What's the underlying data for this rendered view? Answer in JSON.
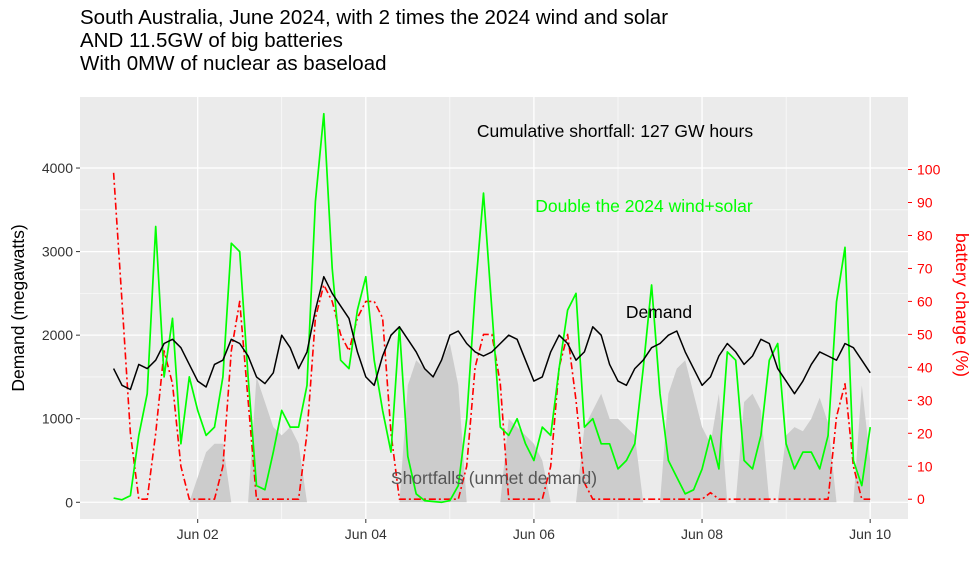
{
  "title_lines": [
    "South Australia, June 2024, with 2 times the 2024 wind and solar",
    "AND 11.5GW of big batteries",
    "With 0MW of nuclear as baseload"
  ],
  "chart_data": {
    "type": "line",
    "xlabel": "",
    "ylabel": "Demand (megawatts)",
    "y2label": "battery charge (%)",
    "ylim": [
      -200,
      4850
    ],
    "y2lim": [
      -6,
      122
    ],
    "xlim": [
      0.6,
      10.45
    ],
    "x_ticks": [
      {
        "value": 2,
        "label": "Jun 02"
      },
      {
        "value": 4,
        "label": "Jun 04"
      },
      {
        "value": 6,
        "label": "Jun 06"
      },
      {
        "value": 8,
        "label": "Jun 08"
      },
      {
        "value": 10,
        "label": "Jun 10"
      }
    ],
    "y_ticks": [
      0,
      1000,
      2000,
      3000,
      4000
    ],
    "y2_ticks": [
      0,
      10,
      20,
      30,
      40,
      50,
      60,
      70,
      80,
      90,
      100
    ],
    "grid": true,
    "annotations": {
      "cumulative": "Cumulative shortfall: 127 GW hours",
      "wind_solar": "Double the 2024 wind+solar",
      "demand": "Demand",
      "shortfalls": "Shortfalls (unmet demand)"
    },
    "colors": {
      "demand": "#000000",
      "wind_solar": "#00ff00",
      "battery": "#ff0000",
      "shortfall": "#cccccc",
      "panel": "#ebebeb"
    },
    "series": [
      {
        "name": "Demand",
        "axis": "left",
        "x": [
          1.0,
          1.1,
          1.2,
          1.3,
          1.4,
          1.5,
          1.6,
          1.7,
          1.8,
          1.9,
          2.0,
          2.1,
          2.2,
          2.3,
          2.4,
          2.5,
          2.6,
          2.7,
          2.8,
          2.9,
          3.0,
          3.1,
          3.2,
          3.3,
          3.4,
          3.5,
          3.6,
          3.7,
          3.8,
          3.9,
          4.0,
          4.1,
          4.2,
          4.3,
          4.4,
          4.5,
          4.6,
          4.7,
          4.8,
          4.9,
          5.0,
          5.1,
          5.2,
          5.3,
          5.4,
          5.5,
          5.6,
          5.7,
          5.8,
          5.9,
          6.0,
          6.1,
          6.2,
          6.3,
          6.4,
          6.5,
          6.6,
          6.7,
          6.8,
          6.9,
          7.0,
          7.1,
          7.2,
          7.3,
          7.4,
          7.5,
          7.6,
          7.7,
          7.8,
          7.9,
          8.0,
          8.1,
          8.2,
          8.3,
          8.4,
          8.5,
          8.6,
          8.7,
          8.8,
          8.9,
          9.0,
          9.1,
          9.2,
          9.3,
          9.4,
          9.5,
          9.6,
          9.7,
          9.8,
          9.9,
          10.0
        ],
        "y": [
          1600,
          1400,
          1350,
          1650,
          1600,
          1700,
          1900,
          1950,
          1850,
          1650,
          1450,
          1380,
          1650,
          1700,
          1950,
          1900,
          1750,
          1500,
          1420,
          1550,
          2000,
          1850,
          1600,
          1800,
          2300,
          2700,
          2500,
          2350,
          2200,
          1800,
          1500,
          1400,
          1750,
          2000,
          2100,
          1950,
          1800,
          1600,
          1500,
          1700,
          2000,
          2050,
          1900,
          1800,
          1750,
          1800,
          1900,
          2000,
          1950,
          1700,
          1450,
          1500,
          1800,
          2000,
          1900,
          1700,
          1800,
          2100,
          2000,
          1650,
          1450,
          1400,
          1600,
          1700,
          1850,
          1900,
          2000,
          2050,
          1800,
          1600,
          1400,
          1500,
          1750,
          1900,
          1800,
          1650,
          1750,
          1950,
          1900,
          1600,
          1450,
          1300,
          1450,
          1650,
          1800,
          1750,
          1700,
          1900,
          1850,
          1700,
          1550
        ]
      },
      {
        "name": "Double the 2024 wind+solar",
        "axis": "left",
        "x": [
          1.0,
          1.1,
          1.2,
          1.3,
          1.4,
          1.5,
          1.6,
          1.7,
          1.8,
          1.9,
          2.0,
          2.1,
          2.2,
          2.3,
          2.4,
          2.5,
          2.6,
          2.7,
          2.8,
          2.9,
          3.0,
          3.1,
          3.2,
          3.3,
          3.4,
          3.5,
          3.6,
          3.7,
          3.8,
          3.9,
          4.0,
          4.1,
          4.2,
          4.3,
          4.4,
          4.5,
          4.6,
          4.7,
          4.8,
          4.9,
          5.0,
          5.1,
          5.2,
          5.3,
          5.4,
          5.5,
          5.6,
          5.7,
          5.8,
          5.9,
          6.0,
          6.1,
          6.2,
          6.3,
          6.4,
          6.5,
          6.6,
          6.7,
          6.8,
          6.9,
          7.0,
          7.1,
          7.2,
          7.3,
          7.4,
          7.5,
          7.6,
          7.7,
          7.8,
          7.9,
          8.0,
          8.1,
          8.2,
          8.3,
          8.4,
          8.5,
          8.6,
          8.7,
          8.8,
          8.9,
          9.0,
          9.1,
          9.2,
          9.3,
          9.4,
          9.5,
          9.6,
          9.7,
          9.8,
          9.9,
          10.0
        ],
        "y": [
          50,
          30,
          80,
          800,
          1300,
          3300,
          1500,
          2200,
          700,
          1500,
          1100,
          800,
          900,
          1500,
          3100,
          3000,
          1500,
          200,
          150,
          600,
          1100,
          900,
          900,
          1400,
          3600,
          4650,
          2800,
          1700,
          1600,
          2300,
          2700,
          1700,
          1100,
          600,
          2100,
          550,
          100,
          20,
          10,
          0,
          20,
          200,
          1000,
          2500,
          3700,
          2300,
          900,
          800,
          1000,
          700,
          500,
          900,
          800,
          1600,
          2300,
          2500,
          900,
          1000,
          700,
          700,
          400,
          500,
          700,
          1600,
          2600,
          1300,
          500,
          300,
          100,
          150,
          400,
          800,
          400,
          1800,
          1700,
          500,
          400,
          800,
          1700,
          1900,
          700,
          400,
          600,
          600,
          400,
          800,
          2400,
          3050,
          500,
          200,
          900
        ]
      },
      {
        "name": "battery charge",
        "axis": "right",
        "x": [
          1.0,
          1.1,
          1.2,
          1.3,
          1.4,
          1.5,
          1.6,
          1.7,
          1.8,
          1.9,
          2.0,
          2.1,
          2.2,
          2.3,
          2.4,
          2.5,
          2.6,
          2.7,
          2.8,
          2.9,
          3.0,
          3.1,
          3.2,
          3.3,
          3.4,
          3.5,
          3.6,
          3.7,
          3.8,
          3.9,
          4.0,
          4.1,
          4.2,
          4.3,
          4.4,
          4.5,
          4.6,
          4.7,
          4.8,
          4.9,
          5.0,
          5.1,
          5.2,
          5.3,
          5.4,
          5.5,
          5.6,
          5.7,
          5.8,
          5.9,
          6.0,
          6.1,
          6.2,
          6.3,
          6.4,
          6.5,
          6.6,
          6.7,
          6.8,
          6.9,
          7.0,
          7.1,
          7.2,
          7.3,
          7.4,
          7.5,
          7.6,
          7.7,
          7.8,
          7.9,
          8.0,
          8.1,
          8.2,
          8.3,
          8.4,
          8.5,
          8.6,
          8.7,
          8.8,
          8.9,
          9.0,
          9.1,
          9.2,
          9.3,
          9.4,
          9.5,
          9.6,
          9.7,
          9.8,
          9.9,
          10.0
        ],
        "y": [
          99,
          60,
          20,
          0,
          0,
          20,
          45,
          35,
          10,
          0,
          0,
          0,
          0,
          10,
          45,
          60,
          30,
          0,
          0,
          0,
          0,
          0,
          0,
          20,
          55,
          65,
          60,
          50,
          45,
          55,
          60,
          60,
          55,
          20,
          0,
          0,
          0,
          0,
          0,
          0,
          0,
          0,
          10,
          40,
          50,
          50,
          35,
          0,
          0,
          0,
          0,
          0,
          10,
          40,
          50,
          30,
          5,
          0,
          0,
          0,
          0,
          0,
          0,
          0,
          0,
          0,
          0,
          0,
          0,
          0,
          0,
          2,
          0,
          0,
          0,
          0,
          0,
          0,
          0,
          0,
          0,
          0,
          0,
          0,
          0,
          0,
          25,
          35,
          10,
          0,
          0
        ]
      },
      {
        "name": "Shortfalls (unmet demand)",
        "axis": "left",
        "x": [
          1.0,
          1.1,
          1.2,
          1.3,
          1.4,
          1.5,
          1.6,
          1.7,
          1.8,
          1.9,
          2.0,
          2.1,
          2.2,
          2.3,
          2.4,
          2.5,
          2.6,
          2.7,
          2.8,
          2.9,
          3.0,
          3.1,
          3.2,
          3.3,
          3.4,
          3.5,
          3.6,
          3.7,
          3.8,
          3.9,
          4.0,
          4.1,
          4.2,
          4.3,
          4.4,
          4.5,
          4.6,
          4.7,
          4.8,
          4.9,
          5.0,
          5.1,
          5.2,
          5.3,
          5.4,
          5.5,
          5.6,
          5.7,
          5.8,
          5.9,
          6.0,
          6.1,
          6.2,
          6.3,
          6.4,
          6.5,
          6.6,
          6.7,
          6.8,
          6.9,
          7.0,
          7.1,
          7.2,
          7.3,
          7.4,
          7.5,
          7.6,
          7.7,
          7.8,
          7.9,
          8.0,
          8.1,
          8.2,
          8.3,
          8.4,
          8.5,
          8.6,
          8.7,
          8.8,
          8.9,
          9.0,
          9.1,
          9.2,
          9.3,
          9.4,
          9.5,
          9.6,
          9.7,
          9.8,
          9.9,
          10.0
        ],
        "y": [
          0,
          0,
          0,
          0,
          0,
          0,
          0,
          0,
          0,
          0,
          300,
          600,
          700,
          700,
          0,
          0,
          0,
          1500,
          1200,
          900,
          800,
          900,
          700,
          0,
          0,
          0,
          0,
          0,
          0,
          0,
          0,
          0,
          0,
          0,
          0,
          1400,
          1700,
          1600,
          1500,
          1700,
          1900,
          1400,
          0,
          0,
          0,
          0,
          0,
          1000,
          900,
          800,
          700,
          500,
          0,
          0,
          0,
          0,
          900,
          1100,
          1300,
          1000,
          1000,
          900,
          800,
          0,
          0,
          0,
          1300,
          1600,
          1700,
          1300,
          900,
          700,
          1300,
          0,
          0,
          1200,
          1300,
          1100,
          0,
          0,
          800,
          900,
          850,
          1000,
          1250,
          950,
          0,
          0,
          0,
          1400,
          500
        ]
      }
    ]
  }
}
